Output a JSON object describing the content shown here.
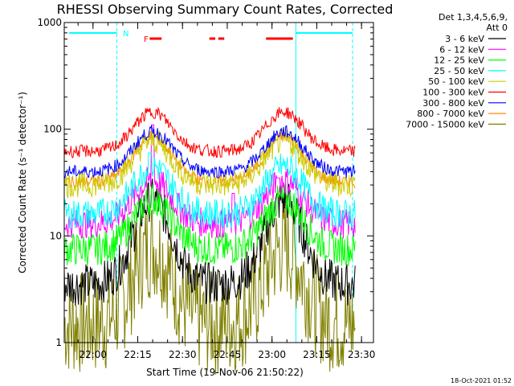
{
  "chart_data": {
    "type": "line",
    "title": "RHESSI Observing Summary Count Rates, Corrected",
    "xlabel": "Start Time (19-Nov-06 21:50:22)",
    "ylabel": "Corrected Count Rate (s⁻¹ detector⁻¹)",
    "y_scale": "log",
    "ylim": [
      1,
      1000
    ],
    "y_ticks": [
      {
        "value": 1,
        "label": "1"
      },
      {
        "value": 10,
        "label": "10"
      },
      {
        "value": 100,
        "label": "100"
      },
      {
        "value": 1000,
        "label": "1000"
      }
    ],
    "xlim": [
      "21:50",
      "23:30"
    ],
    "x_ticks": [
      "22:00",
      "22:15",
      "22:30",
      "22:45",
      "23:00",
      "23:15",
      "23:30"
    ],
    "legend_header": [
      "Det 1,3,4,5,6,9,",
      "Att 0"
    ],
    "legend_position": "right",
    "series": [
      {
        "name": "3 - 6 keV",
        "color": "#000000",
        "base": 3.5,
        "peak": 22,
        "noise": 0.1
      },
      {
        "name": "6 - 12 keV",
        "color": "#ff00ff",
        "base": 13,
        "peak": 33,
        "noise": 0.07
      },
      {
        "name": "12 - 25 keV",
        "color": "#00ff00",
        "base": 7.5,
        "peak": 22,
        "noise": 0.08
      },
      {
        "name": "25 - 50 keV",
        "color": "#00ffff",
        "base": 16,
        "peak": 45,
        "noise": 0.07
      },
      {
        "name": "50 - 100 keV",
        "color": "#cccc00",
        "base": 30,
        "peak": 78,
        "noise": 0.06
      },
      {
        "name": "100 - 300 keV",
        "color": "#ff0000",
        "base": 62,
        "peak": 145,
        "noise": 0.03
      },
      {
        "name": "300 - 800 keV",
        "color": "#0000ff",
        "base": 40,
        "peak": 95,
        "noise": 0.03
      },
      {
        "name": "800 - 7000 keV",
        "color": "#ff8c00",
        "base": 32,
        "peak": 85,
        "noise": 0.03
      },
      {
        "name": "7000 - 15000 keV",
        "color": "#808000",
        "base": 1.5,
        "peak": 8,
        "noise": 0.25
      }
    ],
    "orbit_peaks": [
      "22:20",
      "23:04"
    ],
    "spikes": [
      {
        "series": "6 - 12 keV",
        "time": "22:20",
        "value": 110
      },
      {
        "series": "6 - 12 keV",
        "time": "22:47",
        "value": 25
      },
      {
        "series": "25 - 50 keV",
        "time": "22:19",
        "value": 60
      },
      {
        "series": "6 - 12 keV",
        "time": "23:02",
        "value": 35
      }
    ],
    "flags": [
      {
        "label": "N",
        "color": "#00ffff",
        "segments": [
          [
            "21:52",
            "22:08"
          ],
          [
            "23:08",
            "23:27"
          ]
        ],
        "bounds": [
          "22:08",
          "23:08",
          "23:27"
        ]
      },
      {
        "label": "F",
        "color": "#ff0000",
        "segments": [
          [
            "22:19",
            "22:23"
          ],
          [
            "22:39",
            "22:41"
          ],
          [
            "22:42",
            "22:44"
          ],
          [
            "22:58",
            "23:07"
          ]
        ]
      }
    ]
  },
  "timestamp": "18-Oct-2021 01:52"
}
